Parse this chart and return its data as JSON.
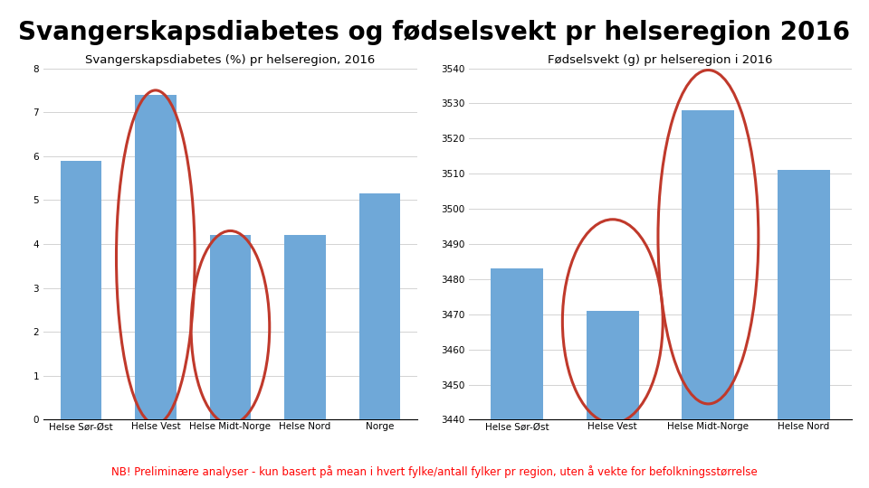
{
  "title": "Svangerskapsdiabetes og fødselsvekt pr helseregion 2016",
  "subtitle": "NB! Preliminære analyser - kun basert på mean i hvert fylke/antall fylker pr region, uten å vekte for befolkningsstørrelse",
  "chart1_title": "Svangerskapsdiabetes (%) pr helseregion, 2016",
  "chart2_title": "Fødselsvekt (g) pr helseregion i 2016",
  "chart1_categories": [
    "Helse Sør-Øst",
    "Helse Vest",
    "Helse Midt-Norge",
    "Helse Nord",
    "Norge"
  ],
  "chart1_values": [
    5.9,
    7.4,
    4.2,
    4.2,
    5.15
  ],
  "chart1_ylim": [
    0,
    8
  ],
  "chart1_yticks": [
    0,
    1,
    2,
    3,
    4,
    5,
    6,
    7,
    8
  ],
  "chart2_categories": [
    "Helse Sør-Øst",
    "Helse Vest",
    "Helse Midt-Norge",
    "Helse Nord"
  ],
  "chart2_values": [
    3483,
    3471,
    3528,
    3511
  ],
  "chart2_ylim": [
    3440,
    3540
  ],
  "chart2_yticks": [
    3440,
    3450,
    3460,
    3470,
    3480,
    3490,
    3500,
    3510,
    3520,
    3530,
    3540
  ],
  "bar_color": "#6fa8d8",
  "ellipse_color": "#C0392B",
  "background_color": "#FFFFFF",
  "title_fontsize": 20,
  "chart_title_fontsize": 9.5,
  "tick_fontsize": 7.5,
  "subtitle_fontsize": 8.5
}
